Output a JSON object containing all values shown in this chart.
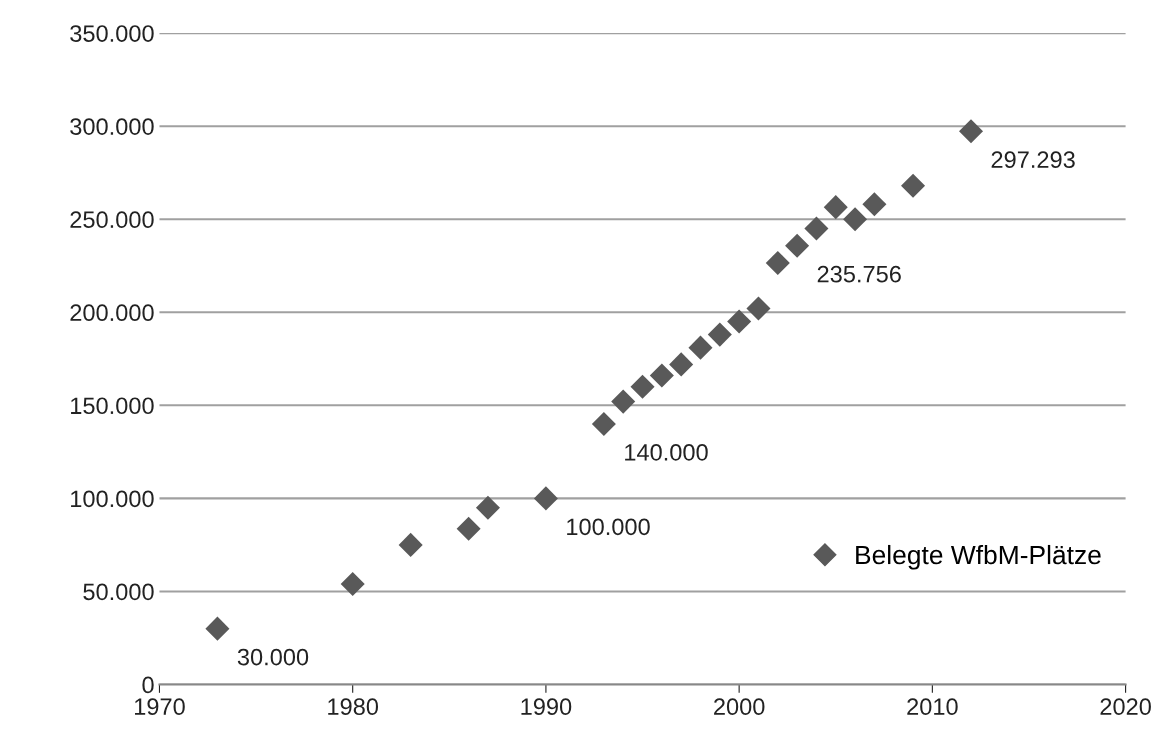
{
  "chart_data": {
    "type": "scatter",
    "x": [
      1973,
      1980,
      1983,
      1986,
      1987,
      1990,
      1993,
      1994,
      1995,
      1996,
      1997,
      1998,
      1999,
      2000,
      2001,
      2002,
      2003,
      2004,
      2005,
      2006,
      2007,
      2009,
      2012
    ],
    "series": [
      {
        "name": "Belegte WfbM-Plätze",
        "color": "#595959",
        "values": [
          30000,
          54000,
          75000,
          83700,
          95000,
          100000,
          140000,
          152000,
          160000,
          166000,
          172000,
          181000,
          188000,
          195000,
          202000,
          226500,
          235756,
          245000,
          256500,
          250000,
          258000,
          268000,
          297293
        ],
        "value_labels": [
          "30.000",
          null,
          null,
          null,
          null,
          "100.000",
          "140.000",
          null,
          null,
          null,
          null,
          null,
          null,
          null,
          null,
          null,
          "235.756",
          null,
          null,
          null,
          null,
          null,
          "297.293"
        ]
      }
    ],
    "marker": "diamond",
    "xlim": [
      1970,
      2020
    ],
    "xticks": [
      1970,
      1980,
      1990,
      2000,
      2010,
      2020
    ],
    "ylim": [
      0,
      350000
    ],
    "yticks": [
      {
        "value": 0,
        "label": "0"
      },
      {
        "value": 50000,
        "label": "50.000"
      },
      {
        "value": 100000,
        "label": "100.000"
      },
      {
        "value": 150000,
        "label": "150.000"
      },
      {
        "value": 200000,
        "label": "200.000"
      },
      {
        "value": 250000,
        "label": "250.000"
      },
      {
        "value": 300000,
        "label": "300.000"
      },
      {
        "value": 350000,
        "label": "350.000"
      }
    ],
    "grid": "y",
    "legend": "bottom right"
  }
}
